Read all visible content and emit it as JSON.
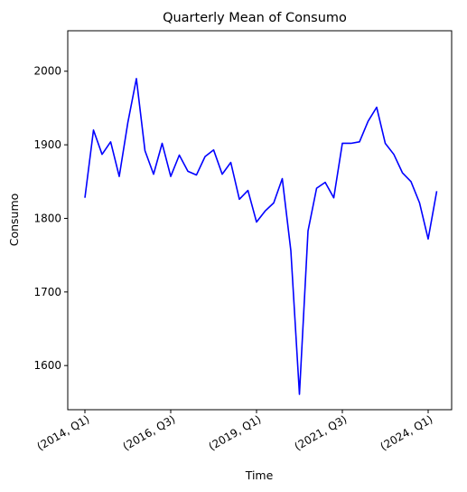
{
  "chart_data": {
    "type": "line",
    "title": "Quarterly Mean of Consumo",
    "xlabel": "Time",
    "ylabel": "Consumo",
    "x_tick_labels": [
      "(2014, Q1)",
      "(2016, Q3)",
      "(2019, Q1)",
      "(2021, Q3)",
      "(2024, Q1)"
    ],
    "y_ticks": [
      1600,
      1700,
      1800,
      1900,
      2000
    ],
    "ylim": [
      1540,
      2055
    ],
    "grid": false,
    "legend": "none",
    "series": [
      {
        "color": "#0000ff",
        "x": [
          "2014 Q1",
          "2014 Q2",
          "2014 Q3",
          "2014 Q4",
          "2015 Q1",
          "2015 Q2",
          "2015 Q3",
          "2015 Q4",
          "2016 Q1",
          "2016 Q2",
          "2016 Q3",
          "2016 Q4",
          "2017 Q1",
          "2017 Q2",
          "2017 Q3",
          "2017 Q4",
          "2018 Q1",
          "2018 Q2",
          "2018 Q3",
          "2018 Q4",
          "2019 Q1",
          "2019 Q2",
          "2019 Q3",
          "2019 Q4",
          "2020 Q1",
          "2020 Q2",
          "2020 Q3",
          "2020 Q4",
          "2021 Q1",
          "2021 Q2",
          "2021 Q3",
          "2021 Q4",
          "2022 Q1",
          "2022 Q2",
          "2022 Q3",
          "2022 Q4",
          "2023 Q1",
          "2023 Q2",
          "2023 Q3",
          "2023 Q4",
          "2024 Q1",
          "2024 Q2"
        ],
        "values": [
          1828,
          1920,
          1887,
          1904,
          1857,
          1930,
          1990,
          1892,
          1860,
          1902,
          1857,
          1886,
          1864,
          1859,
          1884,
          1893,
          1860,
          1876,
          1826,
          1838,
          1795,
          1810,
          1821,
          1854,
          1756,
          1561,
          1783,
          1841,
          1849,
          1828,
          1902,
          1902,
          1904,
          1932,
          1951,
          1902,
          1887,
          1862,
          1850,
          1821,
          1772,
          1837
        ]
      }
    ]
  }
}
